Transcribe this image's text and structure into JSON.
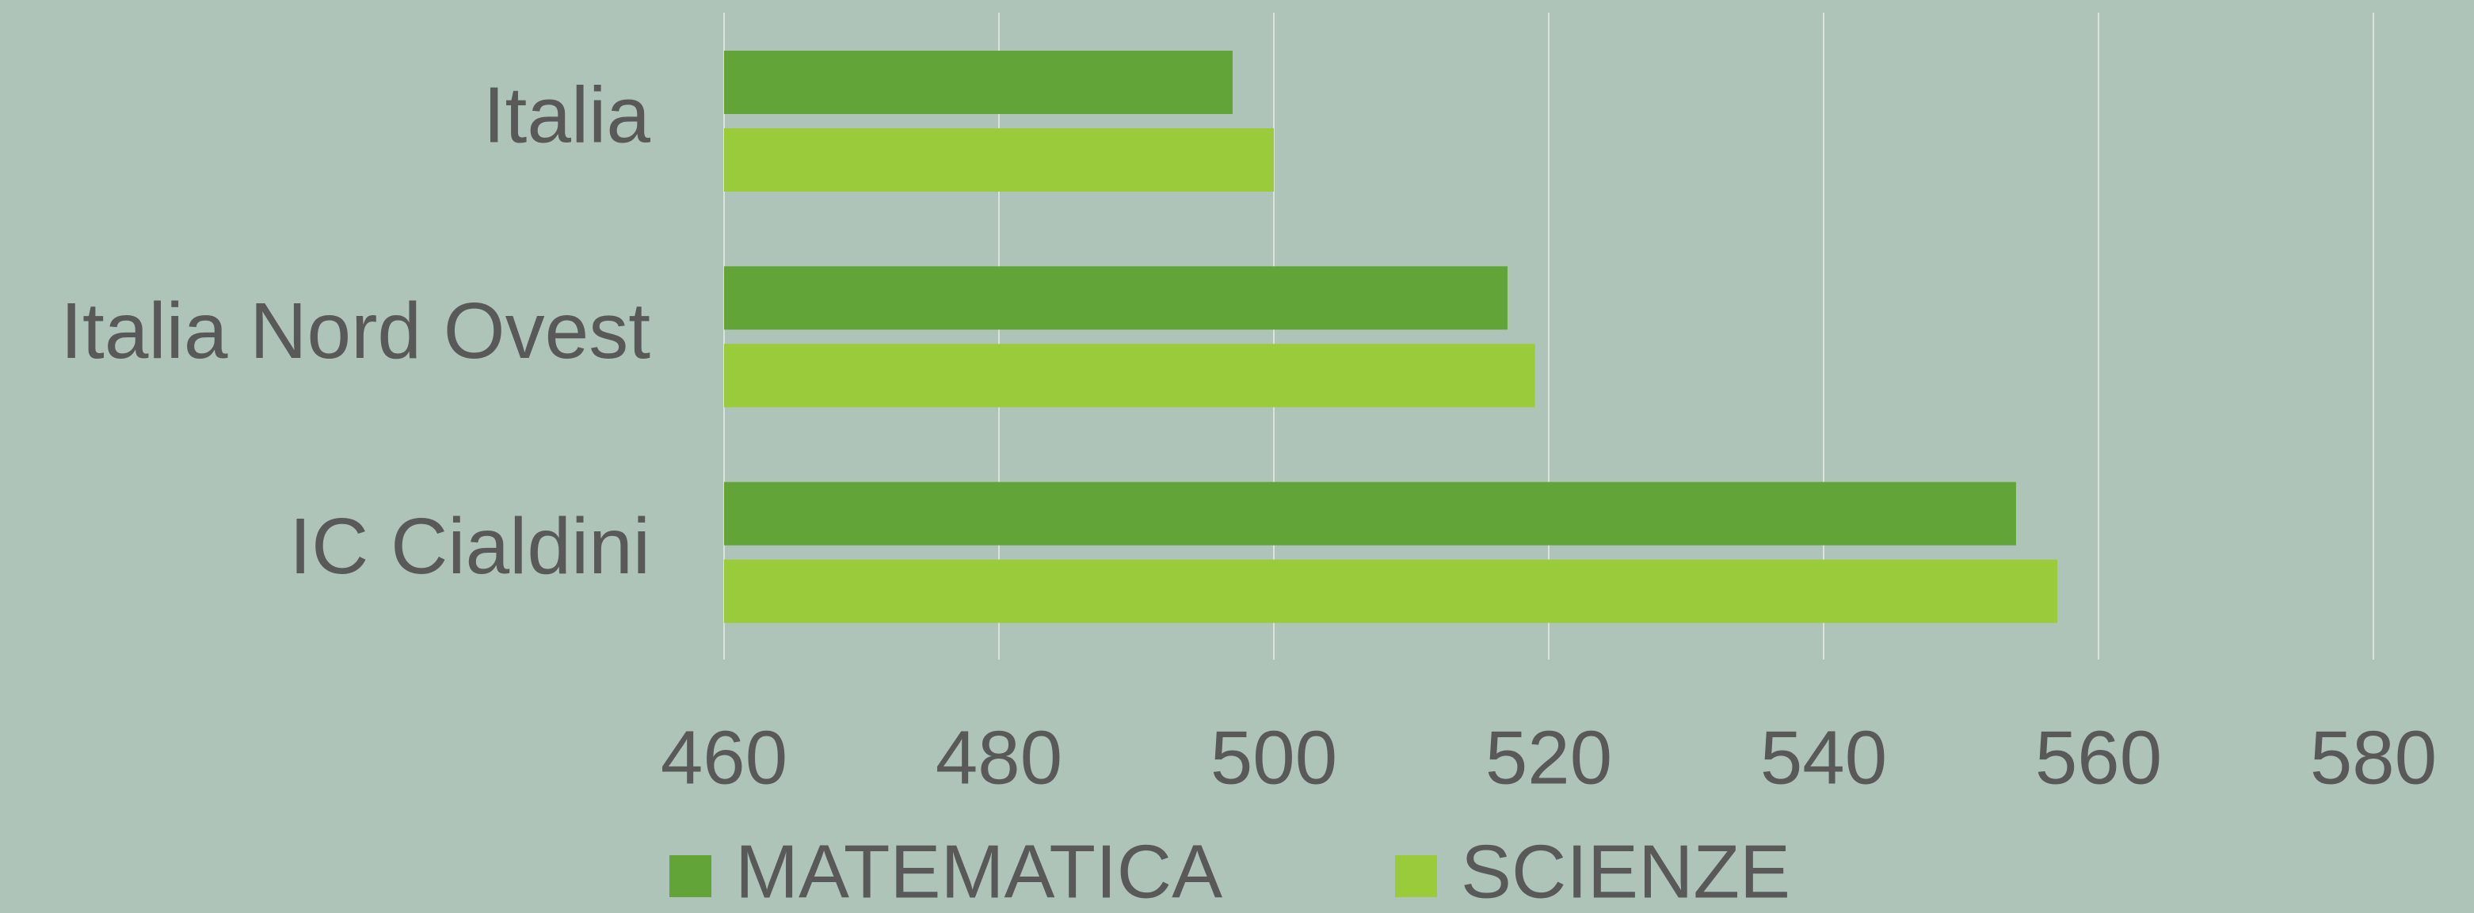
{
  "chart_data": {
    "type": "hbar",
    "categories": [
      "Italia",
      "Italia Nord Ovest",
      "IC Cialdini"
    ],
    "series": [
      {
        "name": "MATEMATICA",
        "color": "#62a438",
        "values": [
          497,
          517,
          554
        ]
      },
      {
        "name": "SCIENZE",
        "color": "#99cb3a",
        "values": [
          500,
          519,
          557
        ]
      }
    ],
    "xlim": [
      460,
      580
    ],
    "xticks": [
      460,
      480,
      500,
      520,
      540,
      560,
      580
    ],
    "grid": true,
    "legend": "bottom"
  }
}
